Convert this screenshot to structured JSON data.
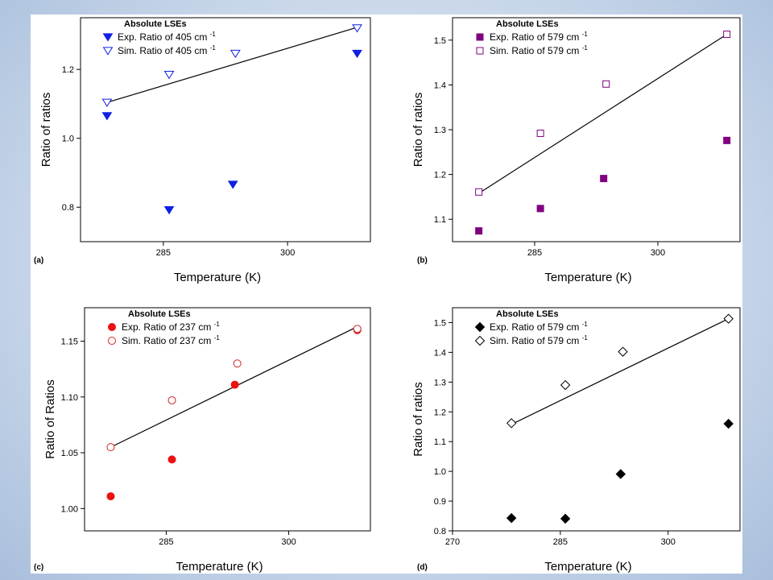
{
  "chart_data": [
    {
      "type": "scatter",
      "panel_label": "(a)",
      "xlabel": "Temperature (K)",
      "ylabel": "Ratio of ratios",
      "xlim": [
        275,
        310
      ],
      "ylim": [
        0.7,
        1.35
      ],
      "xticks": [
        285,
        300
      ],
      "yticks": [
        0.8,
        1.0,
        1.2
      ],
      "tick_decimals": 1,
      "legend_title": "Absolute LSEs",
      "legend_position": "top-left",
      "series": [
        {
          "name": "Exp. Ratio of 405 cm",
          "sup": "-1",
          "marker": "triangle-down",
          "filled": true,
          "color": "#1020e0",
          "points": [
            [
              278.2,
              1.065
            ],
            [
              285.7,
              0.792
            ],
            [
              293.4,
              0.866
            ],
            [
              308.4,
              1.246
            ]
          ]
        },
        {
          "name": "Sim. Ratio of 405 cm",
          "sup": "-1",
          "marker": "triangle-down",
          "filled": false,
          "color": "#1020e0",
          "points": [
            [
              278.2,
              1.104
            ],
            [
              285.7,
              1.185
            ],
            [
              293.7,
              1.246
            ],
            [
              308.4,
              1.32
            ]
          ]
        }
      ],
      "fit": [
        [
          278.2,
          1.104
        ],
        [
          308.4,
          1.322
        ]
      ]
    },
    {
      "type": "scatter",
      "panel_label": "(b)",
      "xlabel": "Temperature (K)",
      "ylabel": "Ratio of ratios",
      "xlim": [
        275,
        310
      ],
      "ylim": [
        1.05,
        1.55
      ],
      "xticks": [
        285,
        300
      ],
      "yticks": [
        1.1,
        1.2,
        1.3,
        1.4,
        1.5
      ],
      "tick_decimals": 1,
      "legend_title": "Absolute LSEs",
      "legend_position": "top-left",
      "series": [
        {
          "name": "Exp. Ratio of 579 cm",
          "sup": "-1",
          "marker": "square",
          "filled": true,
          "color": "#800080",
          "points": [
            [
              278.2,
              1.074
            ],
            [
              285.7,
              1.124
            ],
            [
              293.4,
              1.191
            ],
            [
              308.4,
              1.276
            ]
          ]
        },
        {
          "name": "Sim. Ratio of 579 cm",
          "sup": "-1",
          "marker": "square",
          "filled": false,
          "color": "#800080",
          "points": [
            [
              278.2,
              1.161
            ],
            [
              285.7,
              1.292
            ],
            [
              293.7,
              1.402
            ],
            [
              308.4,
              1.513
            ]
          ]
        }
      ],
      "fit": [
        [
          278.2,
          1.158
        ],
        [
          308.4,
          1.513
        ]
      ]
    },
    {
      "type": "scatter",
      "panel_label": "(c)",
      "xlabel": "Temperature (K)",
      "ylabel": "Ratio of Ratios",
      "xlim": [
        275,
        310
      ],
      "ylim": [
        0.98,
        1.18
      ],
      "xticks": [
        285,
        300
      ],
      "yticks": [
        1.0,
        1.05,
        1.1,
        1.15
      ],
      "tick_decimals": 2,
      "legend_title": "Absolute LSEs",
      "legend_position": "top-left",
      "series": [
        {
          "name": "Exp. Ratio of 237 cm",
          "sup": "-1",
          "marker": "circle",
          "filled": true,
          "color": "#ee1111",
          "points": [
            [
              278.2,
              1.011
            ],
            [
              285.7,
              1.044
            ],
            [
              293.4,
              1.111
            ],
            [
              308.4,
              1.16
            ]
          ]
        },
        {
          "name": "Sim. Ratio of 237 cm",
          "sup": "-1",
          "marker": "circle",
          "filled": false,
          "color": "#cc2222",
          "points": [
            [
              278.2,
              1.055
            ],
            [
              285.7,
              1.097
            ],
            [
              293.7,
              1.13
            ],
            [
              308.4,
              1.161
            ]
          ]
        }
      ],
      "fit": [
        [
          278.2,
          1.055
        ],
        [
          308.4,
          1.163
        ]
      ]
    },
    {
      "type": "scatter",
      "panel_label": "(d)",
      "xlabel": "Temperature (K)",
      "ylabel": "Ratio of ratios",
      "xlim": [
        270,
        310
      ],
      "ylim": [
        0.8,
        1.55
      ],
      "xticks": [
        270,
        285,
        300
      ],
      "yticks": [
        0.8,
        0.9,
        1.0,
        1.1,
        1.2,
        1.3,
        1.4,
        1.5
      ],
      "tick_decimals": 1,
      "legend_title": "Absolute LSEs",
      "legend_position": "top-left",
      "series": [
        {
          "name": "Exp. Ratio of 579 cm",
          "sup": "-1",
          "marker": "diamond",
          "filled": true,
          "color": "#000000",
          "points": [
            [
              278.2,
              0.843
            ],
            [
              285.7,
              0.841
            ],
            [
              293.4,
              0.991
            ],
            [
              308.4,
              1.16
            ]
          ]
        },
        {
          "name": "Sim. Ratio of 579 cm",
          "sup": "-1",
          "marker": "diamond",
          "filled": false,
          "color": "#000000",
          "points": [
            [
              278.2,
              1.162
            ],
            [
              285.7,
              1.29
            ],
            [
              293.7,
              1.402
            ],
            [
              308.4,
              1.513
            ]
          ]
        }
      ],
      "fit": [
        [
          278.2,
          1.158
        ],
        [
          308.4,
          1.513
        ]
      ]
    }
  ]
}
